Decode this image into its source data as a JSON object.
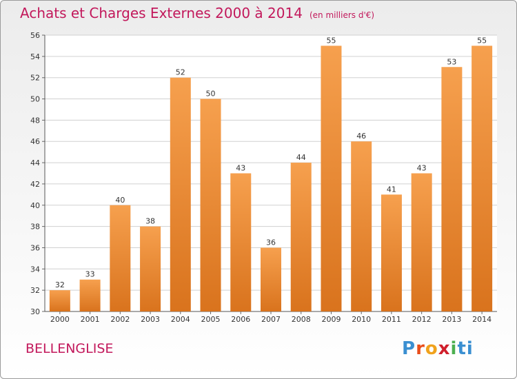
{
  "title": "Achats et Charges Externes 2000 à 2014",
  "subtitle": "(en milliers d'€)",
  "place": "BELLENGLISE",
  "logo_text": "Proxiti",
  "colors": {
    "bar_light": "#f6a04e",
    "bar_dark": "#d9731d",
    "title": "#c2185b",
    "grid": "#d0d0d0"
  },
  "chart_data": {
    "type": "bar",
    "title": "Achats et Charges Externes 2000 à 2014",
    "categories": [
      "2000",
      "2001",
      "2002",
      "2003",
      "2004",
      "2005",
      "2006",
      "2007",
      "2008",
      "2009",
      "2010",
      "2011",
      "2012",
      "2013",
      "2014"
    ],
    "values": [
      32,
      33,
      40,
      38,
      52,
      50,
      43,
      36,
      44,
      55,
      46,
      41,
      43,
      53,
      55
    ],
    "ylim": [
      30,
      56
    ],
    "yticks": [
      30,
      32,
      34,
      36,
      38,
      40,
      42,
      44,
      46,
      48,
      50,
      52,
      54,
      56
    ],
    "grid": true,
    "xlabel": "",
    "ylabel": ""
  }
}
